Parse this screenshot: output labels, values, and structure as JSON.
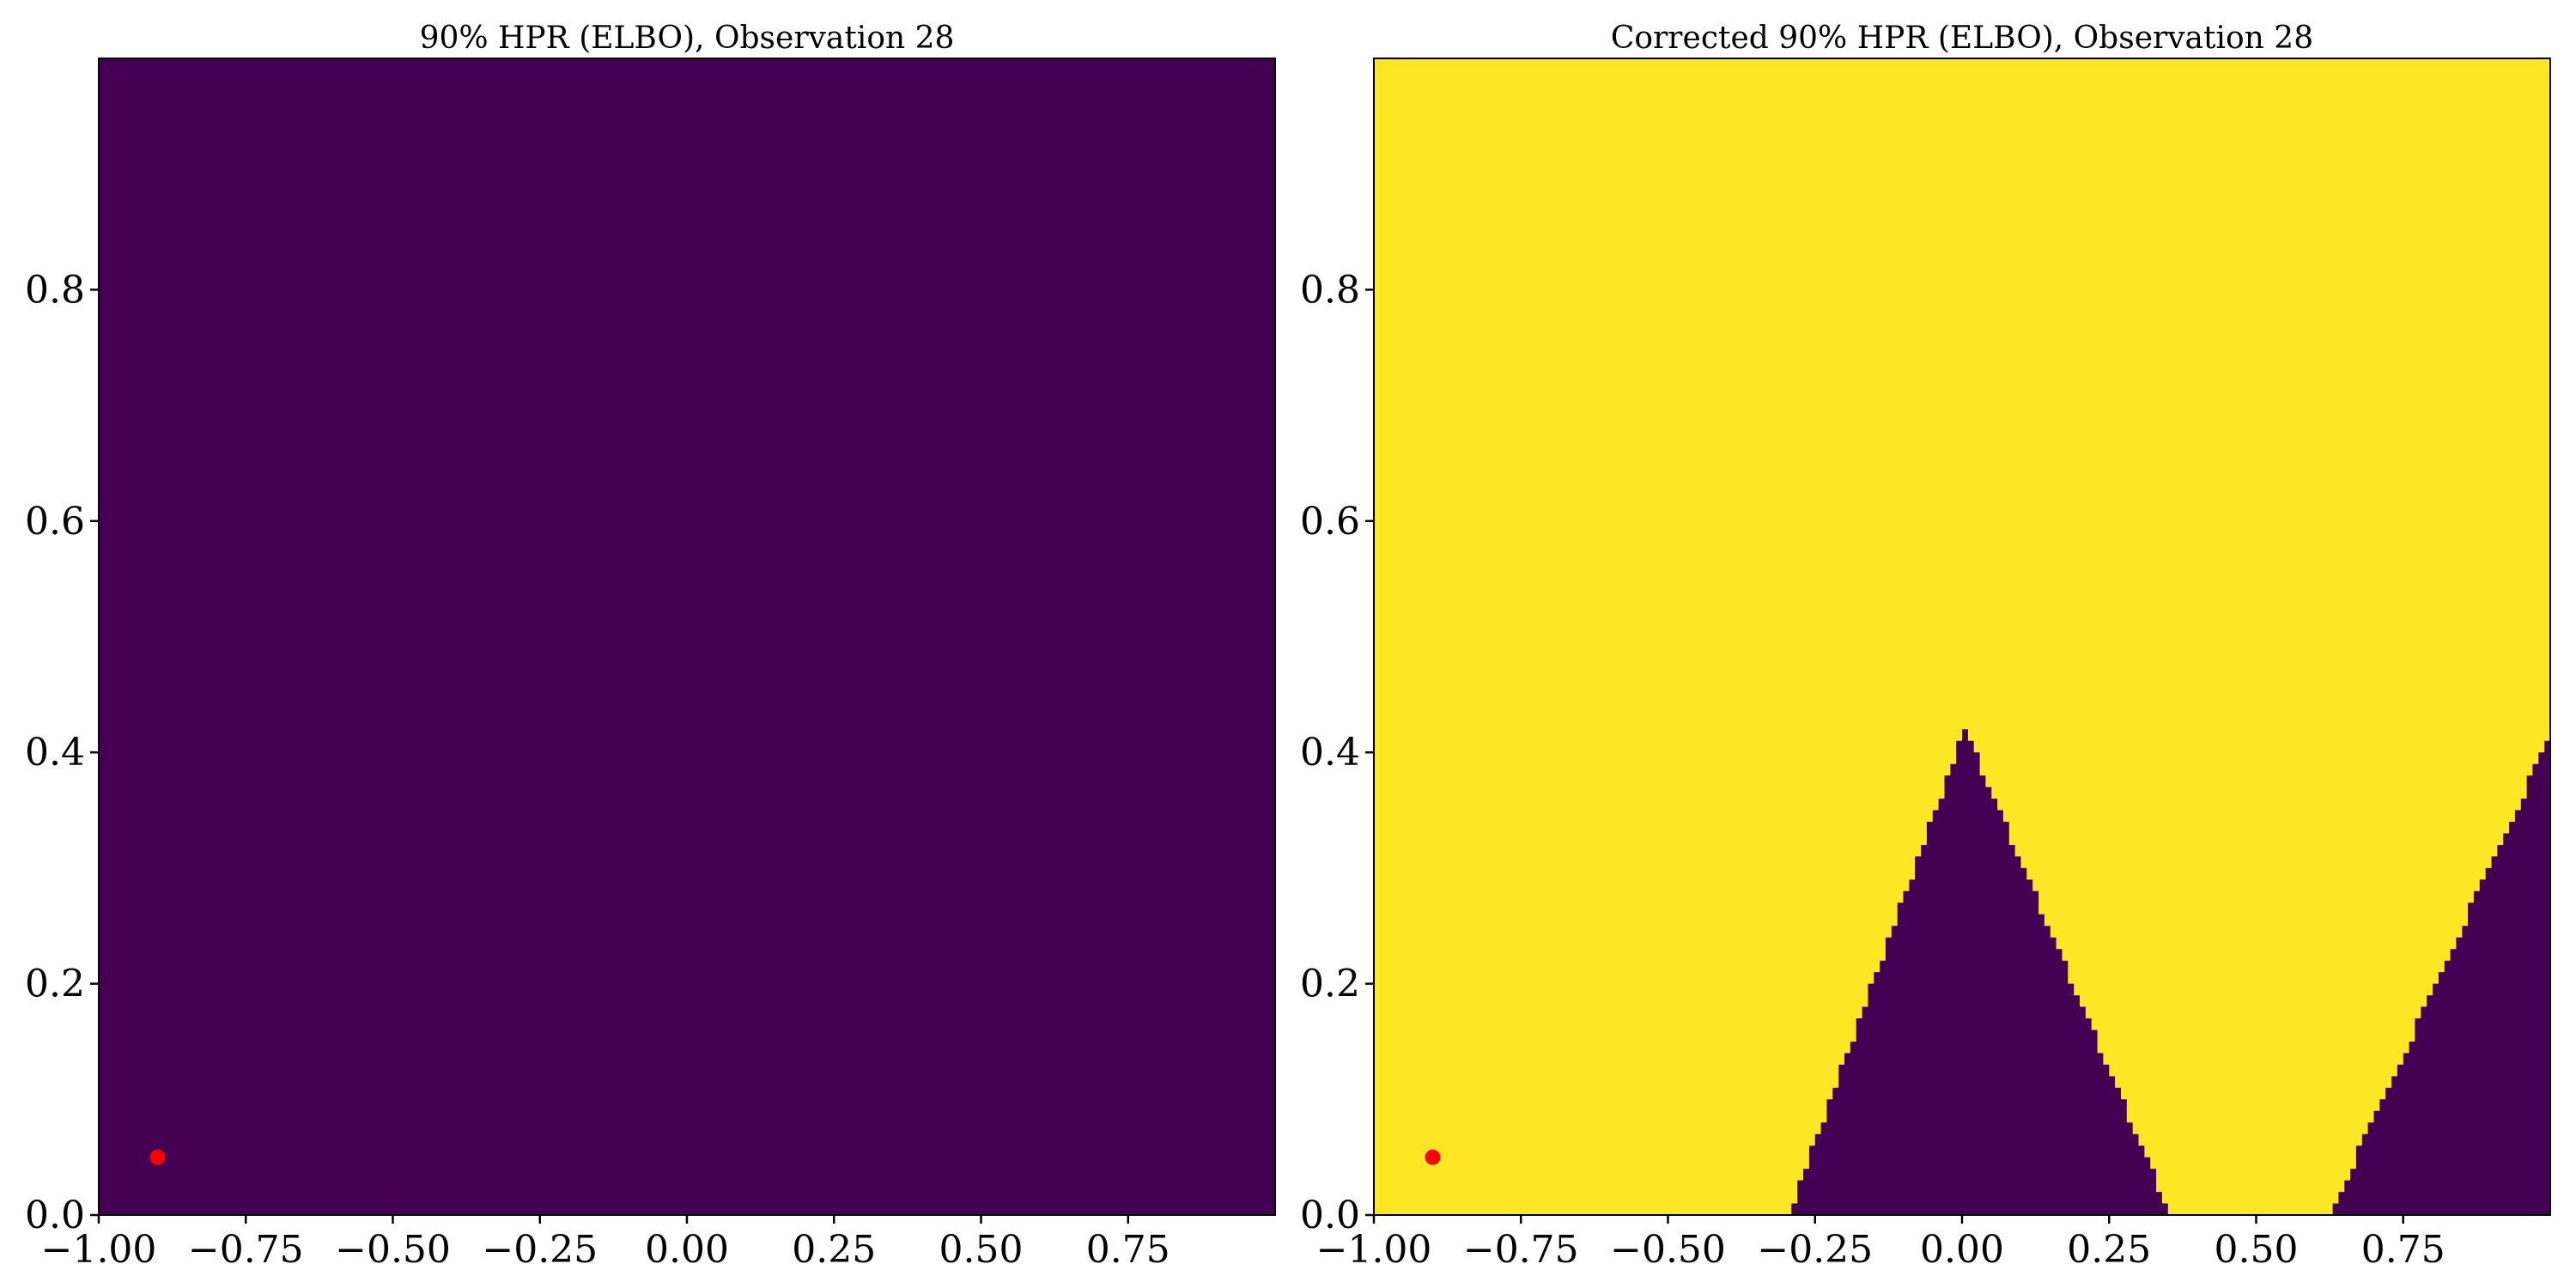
{
  "chart_data": [
    {
      "type": "heatmap",
      "title": "90% HPR (ELBO), Observation 28",
      "xlabel": "",
      "ylabel": "",
      "xlim": [
        -1.0,
        1.0
      ],
      "ylim": [
        0.0,
        1.0
      ],
      "x_ticks": [
        "−1.00",
        "−0.75",
        "−0.50",
        "−0.25",
        "0.00",
        "0.25",
        "0.50",
        "0.75"
      ],
      "y_ticks": [
        "0.0",
        "0.2",
        "0.4",
        "0.6",
        "0.8"
      ],
      "grid": false,
      "colors": {
        "outside": "#440154",
        "inside": "#fde725"
      },
      "region": {
        "description_value": "entire domain outside HPR",
        "inside_fraction": 0.0
      },
      "observation_point": {
        "x": -0.9,
        "y": 0.05,
        "color": "#ff0000"
      }
    },
    {
      "type": "heatmap",
      "title": "Corrected 90% HPR (ELBO), Observation 28",
      "xlabel": "",
      "ylabel": "",
      "xlim": [
        -1.0,
        1.0
      ],
      "ylim": [
        0.0,
        1.0
      ],
      "x_ticks": [
        "−1.00",
        "−0.75",
        "−0.50",
        "−0.25",
        "0.00",
        "0.25",
        "0.50",
        "0.75"
      ],
      "y_ticks": [
        "0.0",
        "0.2",
        "0.4",
        "0.6",
        "0.8"
      ],
      "grid": false,
      "colors": {
        "outside": "#440154",
        "inside": "#fde725"
      },
      "outside_regions": [
        {
          "name": "central-peak",
          "base_left_x": -0.3,
          "peak_x": 0.0,
          "peak_y": 0.42,
          "base_right_x": 0.35
        },
        {
          "name": "right-wedge",
          "base_left_x": 0.62,
          "peak_x": 1.0,
          "peak_y": 0.42
        }
      ],
      "observation_point": {
        "x": -0.9,
        "y": 0.05,
        "color": "#ff0000"
      }
    }
  ]
}
